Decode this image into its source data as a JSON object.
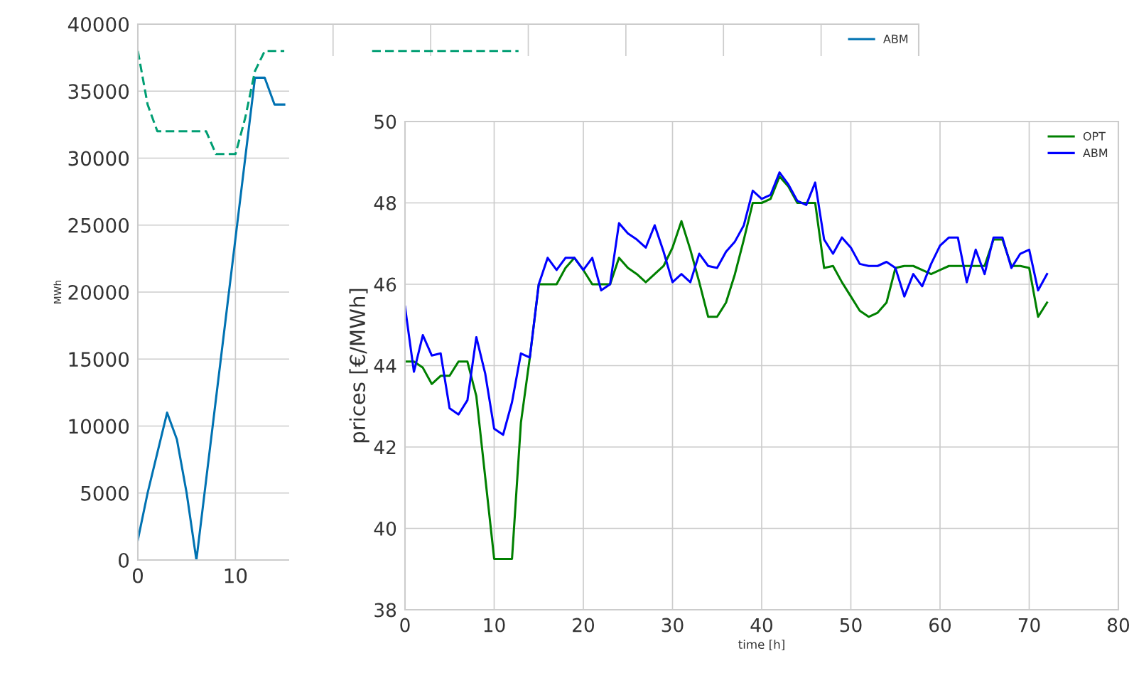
{
  "chart_data": [
    {
      "type": "line",
      "ylabel": "MWh",
      "xlim": [
        0,
        80
      ],
      "ylim": [
        0,
        40000
      ],
      "xticks": [
        0,
        10,
        {
          "value": 20,
          "label": null
        },
        {
          "value": 30,
          "label": null
        },
        {
          "value": 40,
          "label": null
        },
        {
          "value": 50,
          "label": null
        },
        {
          "value": 60,
          "label": null
        },
        {
          "value": 70,
          "label": null
        },
        {
          "value": 80,
          "label": null
        }
      ],
      "yticks": [
        0,
        5000,
        10000,
        15000,
        20000,
        25000,
        30000,
        35000,
        40000
      ],
      "grid": true,
      "legend": "top right",
      "series": [
        {
          "name": "ABM",
          "color": "#0072b2",
          "line_style": "solid",
          "x": [
            0,
            1,
            2,
            3,
            4,
            5,
            6,
            7,
            8,
            9,
            10,
            11,
            12,
            13,
            14,
            15
          ],
          "values": [
            1500,
            5000,
            8000,
            11000,
            9000,
            5000,
            0,
            6000,
            12000,
            18000,
            24000,
            30000,
            36000,
            36000,
            34000,
            34000
          ]
        },
        {
          "color": "#009e73",
          "line_style": "dashed",
          "x": [
            0,
            1,
            2,
            3,
            4,
            5,
            6,
            7,
            8,
            9,
            10,
            11,
            12,
            13,
            14,
            15,
            16,
            17,
            18,
            19,
            20,
            21,
            22,
            23,
            24,
            25,
            26,
            27,
            28,
            29,
            30,
            31,
            32,
            33,
            34,
            35,
            36,
            37,
            38,
            39
          ],
          "values": [
            38000,
            34000,
            32000,
            32000,
            32000,
            32000,
            32000,
            32000,
            30300,
            30300,
            30300,
            33000,
            36500,
            38000,
            38000,
            38000,
            null,
            null,
            null,
            null,
            null,
            null,
            null,
            null,
            38000,
            38000,
            38000,
            38000,
            38000,
            38000,
            38000,
            38000,
            38000,
            38000,
            38000,
            38000,
            38000,
            38000,
            38000,
            38000
          ]
        }
      ]
    },
    {
      "type": "line",
      "xlabel": "time [h]",
      "ylabel": "prices [€/MWh]",
      "xlim": [
        0,
        80
      ],
      "ylim": [
        38,
        50
      ],
      "xticks": [
        0,
        10,
        20,
        30,
        40,
        50,
        60,
        70,
        80
      ],
      "yticks": [
        38,
        40,
        42,
        44,
        46,
        48,
        50
      ],
      "grid": true,
      "legend": "top right",
      "x": [
        0,
        1,
        2,
        3,
        4,
        5,
        6,
        7,
        8,
        9,
        10,
        11,
        12,
        13,
        14,
        15,
        16,
        17,
        18,
        19,
        20,
        21,
        22,
        23,
        24,
        25,
        26,
        27,
        28,
        29,
        30,
        31,
        32,
        33,
        34,
        35,
        36,
        37,
        38,
        39,
        40,
        41,
        42,
        43,
        44,
        45,
        46,
        47,
        48,
        49,
        50,
        51,
        52,
        53,
        54,
        55,
        56,
        57,
        58,
        59,
        60,
        61,
        62,
        63,
        64,
        65,
        66,
        67,
        68,
        69,
        70,
        71,
        72
      ],
      "series": [
        {
          "name": "OPT",
          "color": "#008000",
          "line_style": "solid",
          "values": [
            44.1,
            44.1,
            43.95,
            43.55,
            43.75,
            43.75,
            44.1,
            44.1,
            43.25,
            41.25,
            39.25,
            39.25,
            39.25,
            42.6,
            44.2,
            46.0,
            46.0,
            46.0,
            46.4,
            46.65,
            46.35,
            46.0,
            46.0,
            46.0,
            46.65,
            46.4,
            46.25,
            46.05,
            46.25,
            46.45,
            46.9,
            47.55,
            46.85,
            46.05,
            45.2,
            45.2,
            45.55,
            46.25,
            47.1,
            48.0,
            48.0,
            48.1,
            48.65,
            48.4,
            48.0,
            48.0,
            48.0,
            46.4,
            46.45,
            46.05,
            45.7,
            45.35,
            45.2,
            45.3,
            45.55,
            46.4,
            46.45,
            46.45,
            46.35,
            46.25,
            46.35,
            46.45,
            46.45,
            46.45,
            46.45,
            46.45,
            47.1,
            47.1,
            46.45,
            46.45,
            46.4,
            45.2,
            45.55
          ]
        },
        {
          "name": "ABM",
          "color": "#0000ff",
          "line_style": "solid",
          "values": [
            45.45,
            43.85,
            44.75,
            44.25,
            44.3,
            42.95,
            42.8,
            43.15,
            44.7,
            43.8,
            42.45,
            42.3,
            43.1,
            44.3,
            44.2,
            46.0,
            46.65,
            46.35,
            46.65,
            46.65,
            46.35,
            46.65,
            45.85,
            46.0,
            47.5,
            47.25,
            47.1,
            46.9,
            47.45,
            46.8,
            46.05,
            46.25,
            46.05,
            46.75,
            46.45,
            46.4,
            46.8,
            47.05,
            47.45,
            48.3,
            48.1,
            48.2,
            48.75,
            48.45,
            48.05,
            47.95,
            48.5,
            47.1,
            46.75,
            47.15,
            46.9,
            46.5,
            46.45,
            46.45,
            46.55,
            46.4,
            45.7,
            46.25,
            45.95,
            46.5,
            46.95,
            47.15,
            47.15,
            46.05,
            46.85,
            46.25,
            47.15,
            47.15,
            46.4,
            46.75,
            46.85,
            45.85,
            46.25
          ]
        }
      ]
    }
  ]
}
